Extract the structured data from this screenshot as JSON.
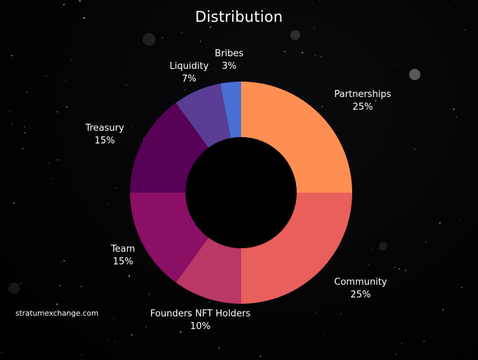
{
  "chart_data": {
    "type": "pie",
    "title": "Distribution",
    "donut": true,
    "slices": [
      {
        "name": "Partnerships",
        "label": "25%",
        "value": 25,
        "color": "#fd8f52"
      },
      {
        "name": "Community",
        "label": "25%",
        "value": 25,
        "color": "#e85f5c"
      },
      {
        "name": "Founders NFT Holders",
        "label": "10%",
        "value": 10,
        "color": "#b93867"
      },
      {
        "name": "Team",
        "label": "15%",
        "value": 15,
        "color": "#8b0f64"
      },
      {
        "name": "Treasury",
        "label": "15%",
        "value": 15,
        "color": "#570157"
      },
      {
        "name": "Liquidity",
        "label": "7%",
        "value": 7,
        "color": "#5a3d94"
      },
      {
        "name": "Bribes",
        "label": "3%",
        "value": 3,
        "color": "#4a6fd4"
      }
    ]
  },
  "watermark": "stratumexchange.com",
  "background_color": "#000000"
}
